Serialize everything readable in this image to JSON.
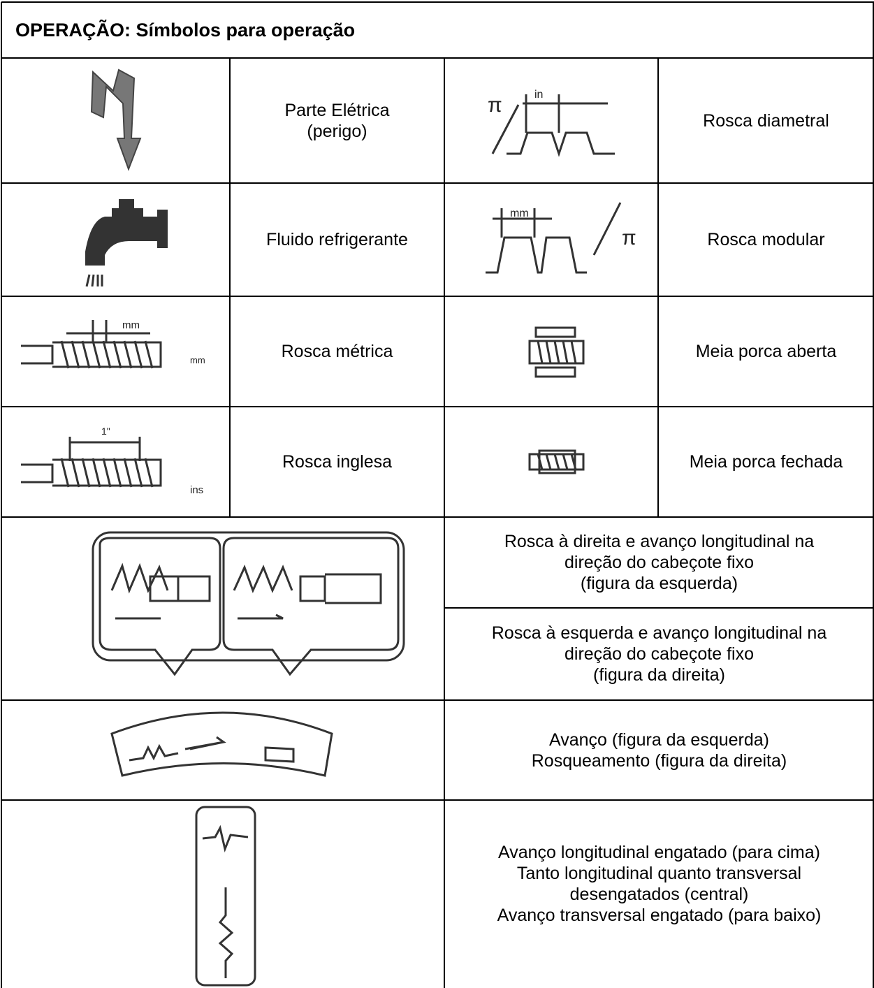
{
  "title": "OPERAÇÃO: Símbolos para operação",
  "rows": [
    {
      "left": [
        "Parte Elétrica",
        "(perigo)"
      ],
      "right": [
        "Rosca diametral"
      ],
      "right_icon_text": [
        "π",
        "in"
      ]
    },
    {
      "left": [
        "Fluido refrigerante"
      ],
      "right": [
        "Rosca modular"
      ],
      "right_icon_text": [
        "mm",
        "π"
      ]
    },
    {
      "left": [
        "Rosca métrica"
      ],
      "right": [
        "Meia porca aberta"
      ],
      "left_icon_text": [
        "mm",
        "mm"
      ]
    },
    {
      "left": [
        "Rosca inglesa"
      ],
      "right": [
        "Meia porca fechada"
      ],
      "left_icon_text": [
        "1\"",
        "ins"
      ]
    }
  ],
  "wide_rows": [
    {
      "descriptions": [
        [
          "Rosca à direita e avanço longitudinal na",
          "direção do cabeçote fixo",
          "(figura da esquerda)"
        ],
        [
          "Rosca à esquerda e avanço longitudinal na",
          "direção do cabeçote fixo",
          "(figura da direita)"
        ]
      ]
    },
    {
      "descriptions": [
        [
          "Avanço (figura da esquerda)",
          "Rosqueamento (figura da direita)"
        ]
      ]
    },
    {
      "descriptions": [
        [
          "Avanço longitudinal engatado (para cima)",
          "Tanto longitudinal quanto transversal",
          "desengatados (central)",
          "Avanço transversal engatado (para baixo)"
        ]
      ]
    }
  ]
}
